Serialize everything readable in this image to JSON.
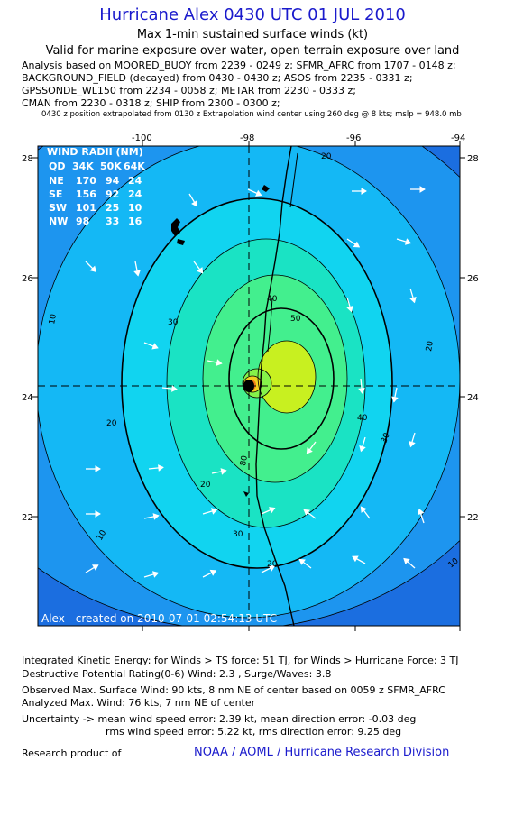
{
  "header": {
    "title": "Hurricane Alex 0430 UTC 01 JUL 2010",
    "subtitle": "Max 1-min sustained surface winds (kt)",
    "valid": "Valid for marine exposure over water, open terrain exposure over land",
    "analysis_lines": [
      "Analysis based on  MOORED_BUOY from 2239 - 0249 z;  SFMR_AFRC from 1707 - 0148 z;",
      "BACKGROUND_FIELD (decayed) from 0430 - 0430 z;  ASOS from 2235 - 0331 z;",
      "GPSSONDE_WL150 from 2234 - 0058 z;  METAR from 2230 - 0333 z;",
      "CMAN from 2230 - 0318 z;  SHIP from 2300 - 0300 z;"
    ],
    "extrapolation_note": "0430 z position extrapolated from 0130 z Extrapolation wind center using 260 deg @ 8 kts; mslp = 948.0 mb"
  },
  "map": {
    "lon_ticks": [
      "-100",
      "-98",
      "-96",
      "-94"
    ],
    "lat_ticks": [
      "28",
      "26",
      "24",
      "22"
    ],
    "center": {
      "lon": -98.0,
      "lat": 24.2
    },
    "contour_labels": [
      "10",
      "20",
      "30",
      "40",
      "50",
      "20",
      "30",
      "40",
      "20",
      "10",
      "20",
      "30",
      "20",
      "10",
      "80"
    ],
    "wind_radii": {
      "title": "WIND RADII (NM)",
      "header": [
        "QD",
        "34K",
        "50K",
        "64K"
      ],
      "rows": [
        [
          "NE",
          "170",
          "94",
          "24"
        ],
        [
          "SE",
          "156",
          "92",
          "24"
        ],
        [
          "SW",
          "101",
          "25",
          "10"
        ],
        [
          "NW",
          "98",
          "33",
          "16"
        ]
      ]
    },
    "credit": "Alex - created on 2010-07-01 02:54:13 UTC",
    "colors": {
      "c0": "#1b6ee0",
      "c10": "#1d95ef",
      "c20": "#14b8f5",
      "c30": "#11d4f0",
      "c40": "#1ae3c4",
      "c50": "#43ef8e",
      "c60": "#86f24a",
      "c70": "#c8f020",
      "c80": "#f1d020",
      "c90": "#f07a18",
      "c100": "#d62a18"
    }
  },
  "footer": {
    "ike": "Integrated Kinetic Energy:  for Winds > TS force: 51 TJ,  for Winds > Hurricane Force: 3 TJ",
    "dpr": "Destructive Potential Rating(0-6)   Wind: 2.3 , Surge/Waves: 3.8",
    "observed": "Observed Max. Surface Wind: 90 kts, 8 nm NE of center based on 0059 z SFMR_AFRC",
    "analyzed": "Analyzed Max. Wind: 76 kts, 7 nm NE of center",
    "uncertainty1": "Uncertainty -> mean wind speed error: 2.39 kt,   mean direction error:  -0.03 deg",
    "uncertainty2": "rms wind speed error: 5.22 kt,   rms direction error: 9.25 deg",
    "research": "Research product of",
    "org": "NOAA / AOML / Hurricane Research Division"
  }
}
